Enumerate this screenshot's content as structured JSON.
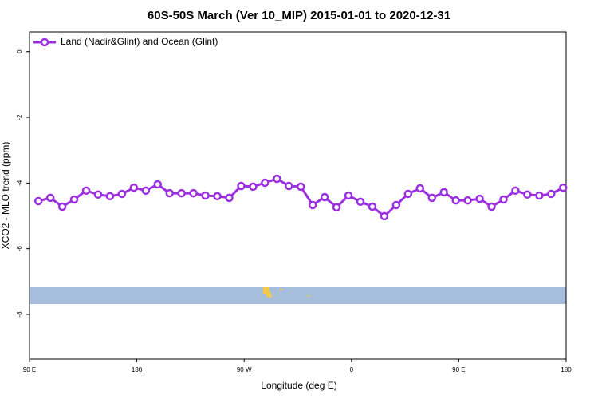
{
  "chart_data": {
    "type": "line",
    "title": "60S-50S March (Ver 10_MIP)   2015-01-01 to 2020-12-31",
    "xlabel": "Longitude (deg E)",
    "ylabel": "XCO2 - MLO trend (ppm)",
    "x": [
      97.5,
      107.5,
      117.5,
      127.5,
      137.5,
      147.5,
      157.5,
      167.5,
      177.5,
      187.5,
      197.5,
      207.5,
      217.5,
      227.5,
      237.5,
      247.5,
      257.5,
      267.5,
      277.5,
      287.5,
      297.5,
      307.5,
      317.5,
      327.5,
      337.5,
      347.5,
      357.5,
      367.5,
      377.5,
      387.5,
      397.5,
      407.5,
      417.5,
      427.5,
      437.5,
      447.5,
      457.5,
      467.5,
      477.5,
      487.5,
      497.5,
      507.5,
      517.5,
      527.5,
      537.5
    ],
    "series": [
      {
        "name": "Land (Nadir&Glint) and Ocean (Glint)",
        "color": "#9b30e0",
        "values": [
          -4.55,
          -4.45,
          -4.72,
          -4.5,
          -4.23,
          -4.35,
          -4.4,
          -4.33,
          -4.14,
          -4.23,
          -4.04,
          -4.31,
          -4.31,
          -4.31,
          -4.38,
          -4.4,
          -4.45,
          -4.09,
          -4.11,
          -3.99,
          -3.87,
          -4.09,
          -4.11,
          -4.67,
          -4.43,
          -4.74,
          -4.38,
          -4.57,
          -4.72,
          -5.01,
          -4.67,
          -4.33,
          -4.16,
          -4.45,
          -4.28,
          -4.53,
          -4.53,
          -4.48,
          -4.72,
          -4.5,
          -4.23,
          -4.35,
          -4.38,
          -4.33,
          -4.14
        ]
      }
    ],
    "xlim": [
      90,
      540
    ],
    "xticks": [
      {
        "value": 90,
        "label": "90 E"
      },
      {
        "value": 180,
        "label": "180"
      },
      {
        "value": 270,
        "label": "90 W"
      },
      {
        "value": 360,
        "label": "0"
      },
      {
        "value": 450,
        "label": "90 E"
      },
      {
        "value": 540,
        "label": "180"
      }
    ],
    "ylim": [
      -9.36,
      0.6
    ],
    "yticks": [
      0,
      -2,
      -4,
      -6,
      -8
    ],
    "legend": "top-left"
  }
}
